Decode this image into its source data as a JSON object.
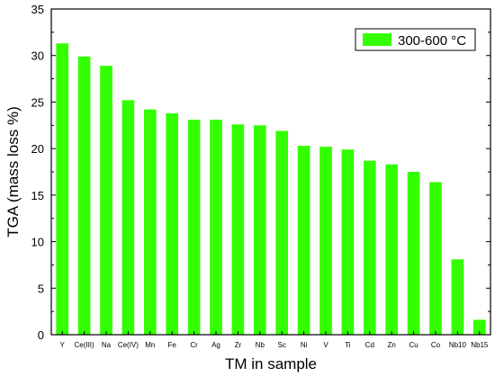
{
  "chart_data": {
    "type": "bar",
    "title": "",
    "xlabel": "TM in sample",
    "ylabel": "TGA (mass loss %)",
    "ylim": [
      0,
      35
    ],
    "yticks": [
      0,
      5,
      10,
      15,
      20,
      25,
      30,
      35
    ],
    "grid": false,
    "legend_position": "top-right",
    "categories": [
      "Y",
      "Ce(III)",
      "Na",
      "Ce(IV)",
      "Mn",
      "Fe",
      "Cr",
      "Ag",
      "Zr",
      "Nb",
      "Sc",
      "Ni",
      "V",
      "Ti",
      "Cd",
      "Zn",
      "Cu",
      "Co",
      "Nb10",
      "Nb15"
    ],
    "series": [
      {
        "name": "300-600 °C",
        "color": "#33ff00",
        "values": [
          31.3,
          29.9,
          28.9,
          25.2,
          24.2,
          23.8,
          23.1,
          23.1,
          22.6,
          22.5,
          21.9,
          20.3,
          20.2,
          19.9,
          18.7,
          18.3,
          17.5,
          16.4,
          8.1,
          1.6
        ]
      }
    ]
  }
}
